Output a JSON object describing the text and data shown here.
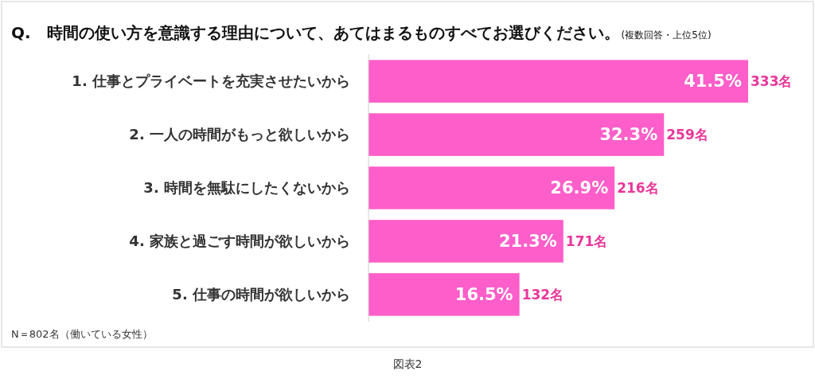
{
  "chart_data": {
    "type": "bar",
    "orientation": "horizontal",
    "title": "Q.　時間の使い方を意識する理由について、あてはまるものすべてお選びください。",
    "subtitle": "(複数回答・上位5位)",
    "categories": [
      "1. 仕事とプライベートを充実させたいから",
      "2. 一人の時間がもっと欲しいから",
      "3. 時間を無駄にしたくないから",
      "4. 家族と過ごす時間が欲しいから",
      "5. 仕事の時間が欲しいから"
    ],
    "values": [
      41.5,
      32.3,
      26.9,
      21.3,
      16.5
    ],
    "value_labels": [
      "41.5%",
      "32.3%",
      "26.9%",
      "21.3%",
      "16.5%"
    ],
    "color": "#fe5ec9",
    "annotations": [
      {
        "text": "333名",
        "x": 41.5,
        "y": "1. 仕事とプライベートを充実させたいから"
      },
      {
        "text": "259名",
        "x": 32.3,
        "y": "2. 一人の時間がもっと欲しいから"
      },
      {
        "text": "216名",
        "x": 26.9,
        "y": "3. 時間を無駄にしたくないから"
      },
      {
        "text": "171名",
        "x": 21.3,
        "y": "4. 家族と過ごす時間が欲しいから"
      },
      {
        "text": "132名",
        "x": 16.5,
        "y": "5. 仕事の時間が欲しいから"
      },
      "N＝802名（働いている女性）",
      "図表2"
    ]
  }
}
